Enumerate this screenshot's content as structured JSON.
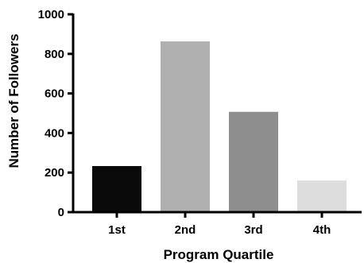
{
  "chart_data": {
    "type": "bar",
    "categories": [
      "1st",
      "2nd",
      "3rd",
      "4th"
    ],
    "values": [
      233,
      863,
      507,
      160
    ],
    "colors": [
      "#0a0a0a",
      "#b0b0b0",
      "#8e8e8e",
      "#dddddd"
    ],
    "title": "",
    "xlabel": "Program Quartile",
    "ylabel": "Number of Followers",
    "ylim": [
      0,
      1000
    ],
    "yticks": [
      0,
      200,
      400,
      600,
      800,
      1000
    ],
    "grid": false,
    "legend": "none"
  }
}
